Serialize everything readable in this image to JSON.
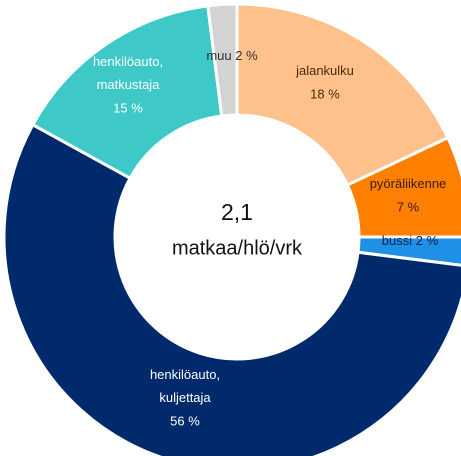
{
  "chart_data": {
    "type": "donut",
    "center_value": "2,1",
    "center_label": "matkaa/hlö/vrk",
    "categories": [
      "jalankulku",
      "pyöräliikenne",
      "bussi",
      "henkilöauto, kuljettaja",
      "henkilöauto, matkustaja",
      "muu"
    ],
    "values": [
      18,
      7,
      2,
      56,
      15,
      2
    ],
    "value_labels": [
      "18 %",
      "7 %",
      "2 %",
      "56 %",
      "15 %",
      "2 %"
    ],
    "colors": [
      "#ffc18c",
      "#ff8000",
      "#1e90e6",
      "#002a6c",
      "#3ec8c8",
      "#d3d3d3"
    ]
  }
}
